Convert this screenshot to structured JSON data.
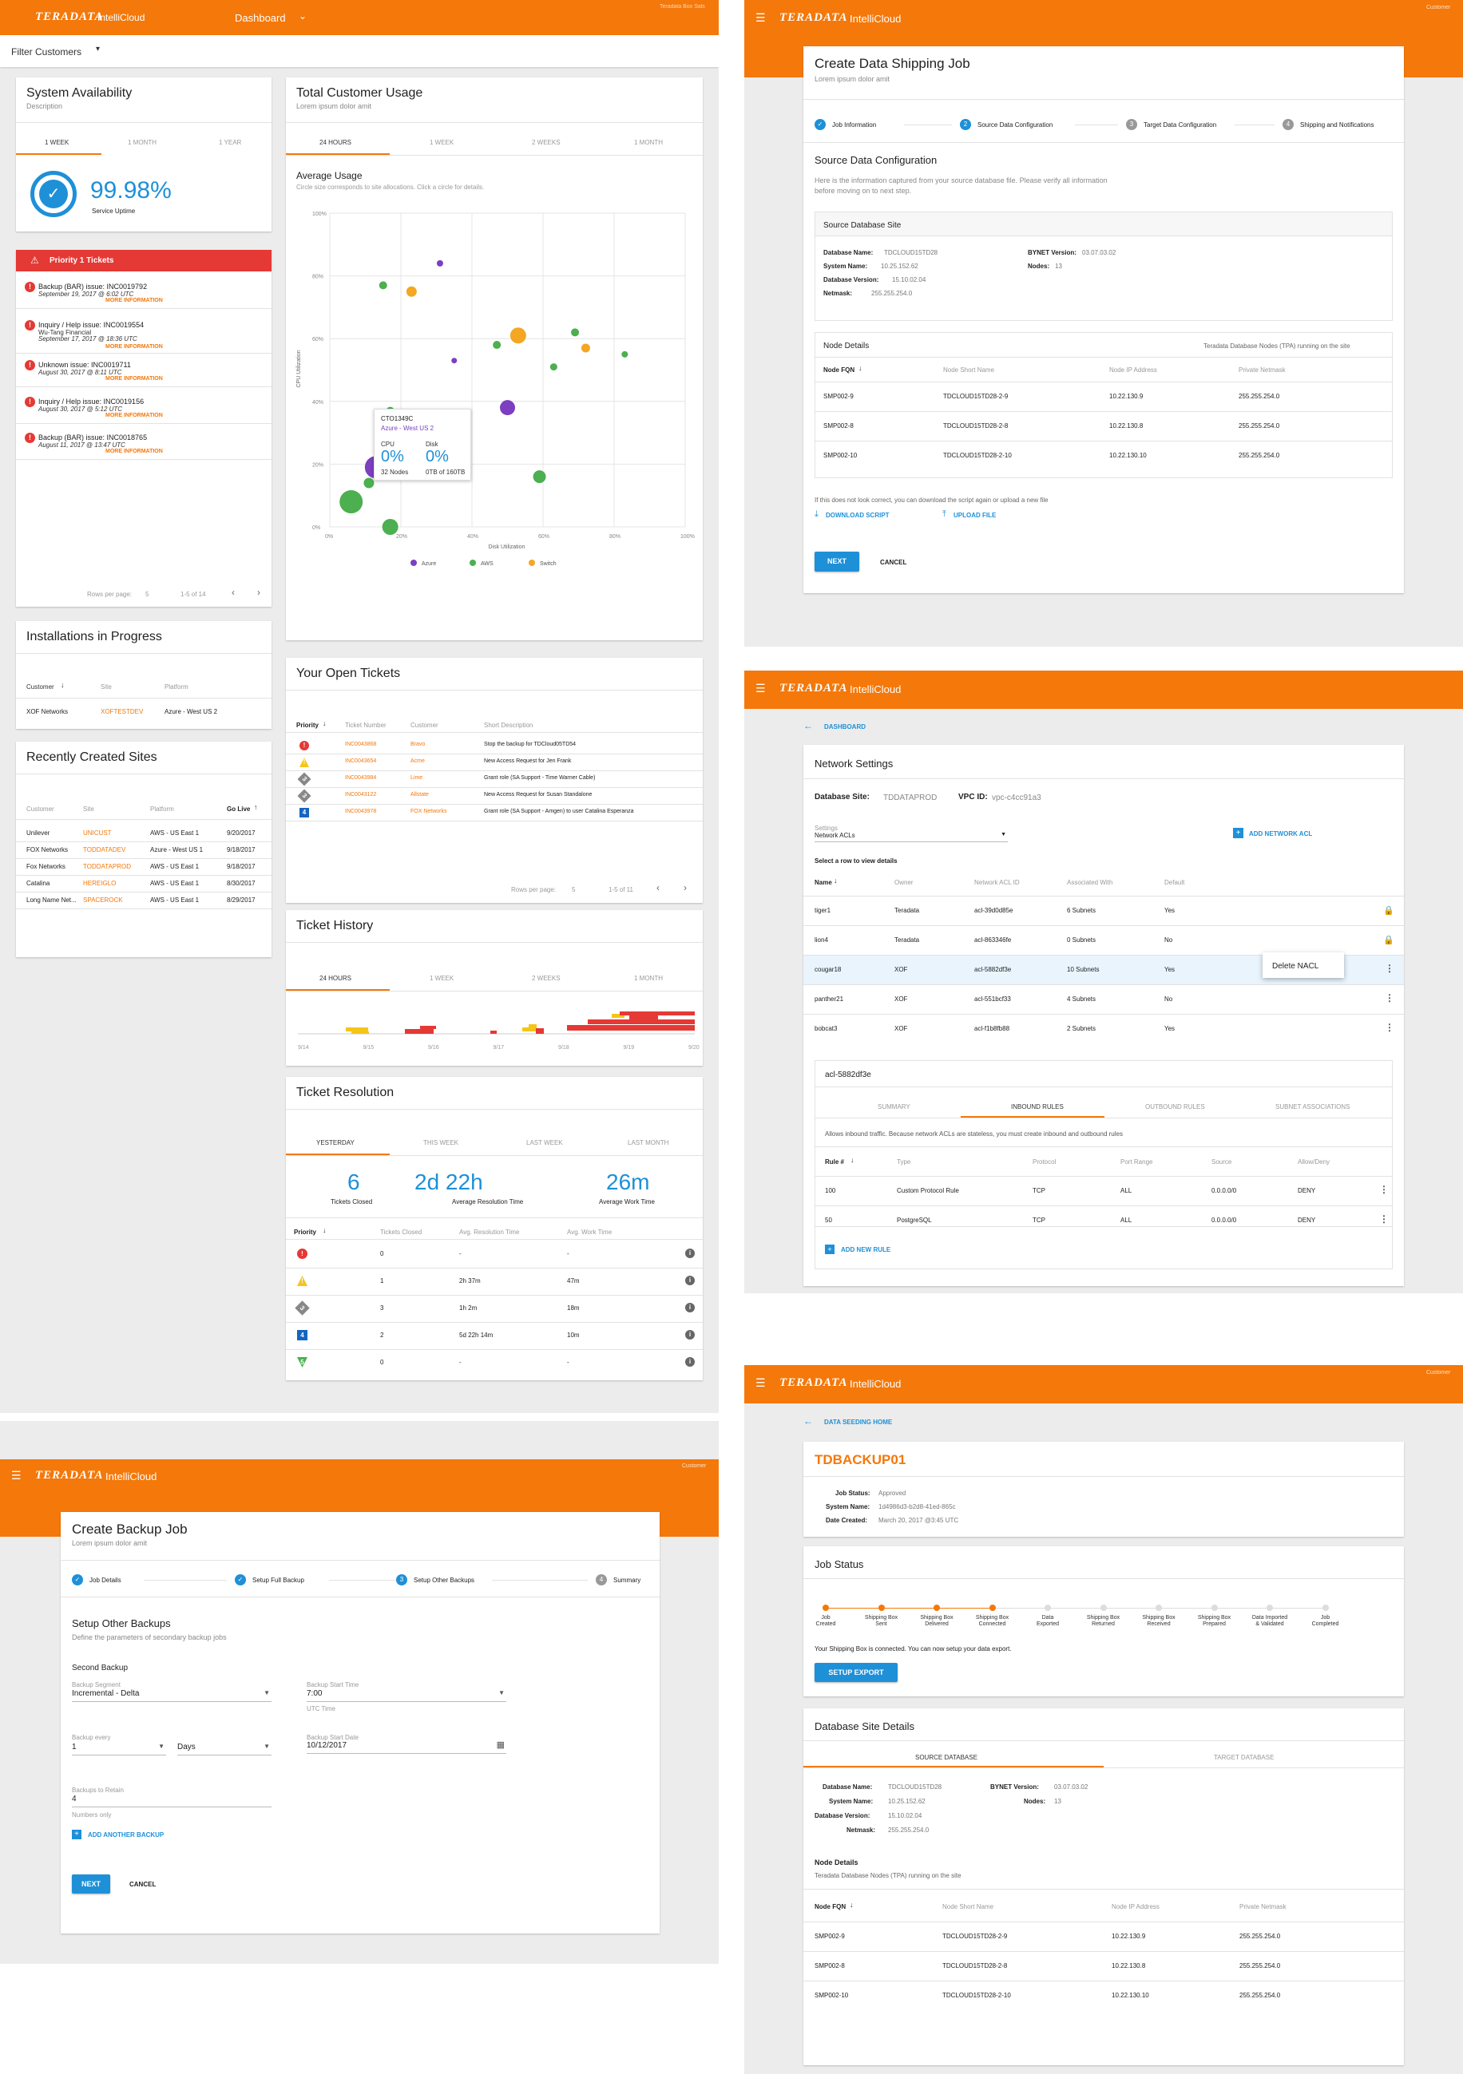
{
  "colors": {
    "brand": "#f4780a",
    "accent": "#1e90d8",
    "danger": "#e53935",
    "azure": "#7b3fbf",
    "aws": "#4caf50",
    "switch": "#f5a623"
  },
  "brand": {
    "logo": "TERADATA",
    "app": "IntelliCloud",
    "env": "Teradata Box Sals",
    "role": "Customer"
  },
  "dashboard": {
    "nav_title": "Dashboard",
    "filter": "Filter Customers",
    "availability": {
      "title": "System Availability",
      "desc": "Description",
      "tabs": [
        "1 WEEK",
        "1 MONTH",
        "1 YEAR"
      ],
      "value": "99.98%",
      "label": "Service Uptime"
    },
    "usage": {
      "title": "Total Customer Usage",
      "desc": "Lorem ipsum dolor amit",
      "tabs": [
        "24 HOURS",
        "1 WEEK",
        "2 WEEKS",
        "1 MONTH"
      ],
      "chart_title": "Average Usage",
      "chart_note": "Circle size corresponds to site allocations. Click a circle for details."
    },
    "tooltip": {
      "id": "CTO1349C",
      "region": "Azure - West US 2",
      "cpu_label": "CPU",
      "cpu": "0%",
      "cpu_sub": "32 Nodes",
      "disk_label": "Disk",
      "disk": "0%",
      "disk_sub": "0TB of 160TB"
    },
    "priority": {
      "title": "Priority 1 Tickets",
      "more": "MORE INFORMATION",
      "rows_label": "Rows per page:",
      "rows": "5",
      "range": "1-5 of 14",
      "items": [
        {
          "title": "Backup (BAR) issue: INC0019792",
          "sub": "",
          "date": "September 19, 2017 @ 6:02 UTC"
        },
        {
          "title": "Inquiry / Help issue: INC0019554",
          "sub": "Wu-Tang Financial",
          "date": "September 17, 2017 @ 18:36 UTC"
        },
        {
          "title": "Unknown issue: INC0019711",
          "sub": "",
          "date": "August 30, 2017 @ 8:11 UTC"
        },
        {
          "title": "Inquiry / Help issue: INC0019156",
          "sub": "",
          "date": "August 30, 2017 @ 5:12 UTC"
        },
        {
          "title": "Backup (BAR) issue: INC0018765",
          "sub": "",
          "date": "August 11, 2017 @ 13:47 UTC"
        }
      ]
    },
    "installs": {
      "title": "Installations in Progress",
      "headers": [
        "Customer",
        "Site",
        "Platform"
      ],
      "rows": [
        [
          "XOF Networks",
          "XOFTESTDEV",
          "Azure - West US 2"
        ]
      ]
    },
    "recent": {
      "title": "Recently Created Sites",
      "headers": [
        "Customer",
        "Site",
        "Platform",
        "Go Live"
      ],
      "rows": [
        [
          "Unilever",
          "UNICUST",
          "AWS - US East 1",
          "9/20/2017"
        ],
        [
          "FOX Networks",
          "TODDATADEV",
          "Azure - West US 1",
          "9/18/2017"
        ],
        [
          "Fox Networks",
          "TODDATAPROD",
          "AWS - US East 1",
          "9/18/2017"
        ],
        [
          "Catalina",
          "HEREIGLO",
          "AWS - US East 1",
          "8/30/2017"
        ],
        [
          "Long Name Net...",
          "SPACEROCK",
          "AWS - US East 1",
          "8/29/2017"
        ]
      ]
    },
    "open": {
      "title": "Your Open Tickets",
      "headers": [
        "Priority",
        "Ticket Number",
        "Customer",
        "Short Description"
      ],
      "rows_label": "Rows per page:",
      "rows": "5",
      "range": "1-5 of 11",
      "rows_data": [
        [
          "1",
          "INC0043868",
          "Bravo",
          "Stop the backup for TDCloud05TD54"
        ],
        [
          "2",
          "INC0043654",
          "Acme",
          "New Access Request for Jen Frank"
        ],
        [
          "3",
          "INC0043984",
          "Lime",
          "Grant role (SA Support - Time Warner Cable)"
        ],
        [
          "3",
          "INC0043122",
          "Allstate",
          "New Access Request for Susan Standalone"
        ],
        [
          "4",
          "INC0043978",
          "FOX Networks",
          "Grant role (SA Support - Amgen) to user Catalina Esperanza"
        ]
      ]
    },
    "history": {
      "title": "Ticket History",
      "tabs": [
        "24 HOURS",
        "1 WEEK",
        "2 WEEKS",
        "1 MONTH"
      ],
      "xlabels": [
        "9/14",
        "9/15",
        "9/16",
        "9/17",
        "9/18",
        "9/19",
        "9/20"
      ]
    },
    "resolution": {
      "title": "Ticket Resolution",
      "tabs": [
        "YESTERDAY",
        "THIS WEEK",
        "LAST WEEK",
        "LAST MONTH"
      ],
      "kpis": [
        {
          "v": "6",
          "l": "Tickets Closed"
        },
        {
          "v": "2d 22h",
          "l": "Average Resolution Time"
        },
        {
          "v": "26m",
          "l": "Average Work Time"
        }
      ],
      "headers": [
        "Priority",
        "Tickets Closed",
        "Avg. Resolution Time",
        "Avg. Work Time"
      ],
      "rows": [
        [
          "1",
          "0",
          "-",
          "-"
        ],
        [
          "2",
          "1",
          "2h 37m",
          "47m"
        ],
        [
          "3",
          "3",
          "1h 2m",
          "18m"
        ],
        [
          "4",
          "2",
          "5d 22h 14m",
          "10m"
        ],
        [
          "5",
          "0",
          "-",
          "-"
        ]
      ]
    }
  },
  "chart_data": {
    "type": "scatter",
    "title": "Average Usage",
    "xlabel": "Disk Utilization",
    "ylabel": "CPU Utilization",
    "xlim": [
      0,
      100
    ],
    "ylim": [
      0,
      100
    ],
    "xticks": [
      "0%",
      "20%",
      "40%",
      "60%",
      "80%",
      "100%"
    ],
    "yticks": [
      "0%",
      "20%",
      "40%",
      "60%",
      "80%",
      "100%"
    ],
    "legend": "bottom",
    "series": [
      {
        "name": "Azure",
        "color": "#7b3fbf",
        "points": [
          [
            31,
            84,
            4
          ],
          [
            50,
            38,
            15
          ],
          [
            13,
            19,
            24
          ],
          [
            35,
            53,
            3
          ]
        ]
      },
      {
        "name": "AWS",
        "color": "#4caf50",
        "points": [
          [
            15,
            77,
            6
          ],
          [
            47,
            58,
            6
          ],
          [
            69,
            62,
            6
          ],
          [
            63,
            51,
            5
          ],
          [
            83,
            55,
            4
          ],
          [
            6,
            8,
            25
          ],
          [
            17,
            37,
            6
          ],
          [
            19,
            27,
            6
          ],
          [
            33,
            20,
            15
          ],
          [
            59,
            16,
            12
          ],
          [
            11,
            14,
            9
          ],
          [
            17,
            0,
            16
          ]
        ]
      },
      {
        "name": "Switch",
        "color": "#f5a623",
        "points": [
          [
            23,
            75,
            9
          ],
          [
            53,
            61,
            16
          ],
          [
            72,
            57,
            7
          ]
        ]
      }
    ]
  },
  "backup": {
    "title": "Create Backup Job",
    "desc": "Lorem ipsum dolor amit",
    "steps": [
      "Job Details",
      "Setup Full Backup",
      "Setup Other Backups",
      "Summary"
    ],
    "section": "Setup Other Backups",
    "section_desc": "Define the parameters of secondary backup jobs",
    "sub": "Second Backup",
    "seg_label": "Backup Segment",
    "seg": "Incremental - Delta",
    "start_label": "Backup Start Time",
    "start": "7:00",
    "tz": "UTC Time",
    "every_label": "Backup every",
    "every": "1",
    "unit": "Days",
    "date_label": "Backup Start Date",
    "date": "10/12/2017",
    "retain_label": "Backups to Retain",
    "retain": "4",
    "retain_hint": "Numbers only",
    "add": "ADD ANOTHER BACKUP",
    "next": "NEXT",
    "cancel": "CANCEL"
  },
  "shipping": {
    "title": "Create Data Shipping Job",
    "desc": "Lorem ipsum dolor amit",
    "steps": [
      "Job Information",
      "Source Data Configuration",
      "Target Data Configuration",
      "Shipping and Notifications"
    ],
    "section": "Source Data Configuration",
    "section_desc1": "Here is the information captured from your source database file. Please verify all information",
    "section_desc2": "before moving on to next step.",
    "site_title": "Source Database Site",
    "fields": [
      [
        "Database Name:",
        "TDCLOUD15TD28"
      ],
      [
        "System Name:",
        "10.25.152.62"
      ],
      [
        "Database Version:",
        "15.10.02.04"
      ],
      [
        "Netmask:",
        "255.255.254.0"
      ]
    ],
    "fields2": [
      [
        "BYNET Version:",
        "03.07.03.02"
      ],
      [
        "Nodes:",
        "13"
      ]
    ],
    "nodes_title": "Node Details",
    "nodes_note": "Teradata Database Nodes (TPA) running on the site",
    "headers": [
      "Node FQN",
      "Node Short Name",
      "Node IP Address",
      "Private Netmask"
    ],
    "rows": [
      [
        "SMP002-9",
        "TDCLOUD15TD28-2-9",
        "10.22.130.9",
        "255.255.254.0"
      ],
      [
        "SMP002-8",
        "TDCLOUD15TD28-2-8",
        "10.22.130.8",
        "255.255.254.0"
      ],
      [
        "SMP002-10",
        "TDCLOUD15TD28-2-10",
        "10.22.130.10",
        "255.255.254.0"
      ]
    ],
    "hint": "If this does not look correct, you can download the script again or upload a new file",
    "download": "DOWNLOAD SCRIPT",
    "upload": "UPLOAD FILE",
    "next": "NEXT",
    "cancel": "CANCEL"
  },
  "network": {
    "back": "DASHBOARD",
    "title": "Network Settings",
    "db_label": "Database Site:",
    "db": "TDDATAPROD",
    "vpc_label": "VPC ID:",
    "vpc": "vpc-c4cc91a3",
    "settings_label": "Settings",
    "settings": "Network ACLs",
    "add": "ADD NETWORK ACL",
    "select": "Select a row to view details",
    "headers": [
      "Name",
      "Owner",
      "Network ACL ID",
      "Associated With",
      "Default"
    ],
    "rows": [
      [
        "tiger1",
        "Teradata",
        "acl-39d0d85e",
        "6 Subnets",
        "Yes"
      ],
      [
        "lion4",
        "Teradata",
        "acl-863346fe",
        "0 Subnets",
        "No"
      ],
      [
        "cougar18",
        "XOF",
        "acl-5882df3e",
        "10 Subnets",
        "Yes"
      ],
      [
        "panther21",
        "XOF",
        "acl-551bcf33",
        "4 Subnets",
        "No"
      ],
      [
        "bobcat3",
        "XOF",
        "acl-f1b8fb88",
        "2 Subnets",
        "Yes"
      ]
    ],
    "menu": "Delete NACL",
    "detail": "acl-5882df3e",
    "tabs": [
      "SUMMARY",
      "INBOUND RULES",
      "OUTBOUND RULES",
      "SUBNET ASSOCIATIONS"
    ],
    "rules_note": "Allows inbound traffic. Because network ACLs are stateless, you must create inbound and outbound rules",
    "rule_headers": [
      "Rule #",
      "Type",
      "Protocol",
      "Port Range",
      "Source",
      "Allow/Deny"
    ],
    "rules": [
      [
        "100",
        "Custom Protocol Rule",
        "TCP",
        "ALL",
        "0.0.0.0/0",
        "DENY"
      ],
      [
        "50",
        "PostgreSQL",
        "TCP",
        "ALL",
        "0.0.0.0/0",
        "DENY"
      ]
    ],
    "add_rule": "ADD NEW RULE"
  },
  "seeding": {
    "back": "DATA SEEDING HOME",
    "title": "TDBACKUP01",
    "fields": [
      [
        "Job Status:",
        "Approved"
      ],
      [
        "System Name:",
        "1d4986d3-b2d8-41ed-865c"
      ],
      [
        "Date Created:",
        "March 20, 2017 @3:45 UTC"
      ]
    ],
    "status_title": "Job Status",
    "steps": [
      "Job\nCreated",
      "Shipping Box\nSent",
      "Shipping Box\nDelivered",
      "Shipping Box\nConnected",
      "Data\nExported",
      "Shipping Box\nReturned",
      "Shipping Box\nReceived",
      "Shipping Box\nPrepared",
      "Data Imported\n& Validated",
      "Job\nCompleted"
    ],
    "done": 4,
    "msg": "Your Shipping Box is connected. You can now setup your data export.",
    "btn": "SETUP EXPORT",
    "site_title": "Database Site Details",
    "tabs": [
      "SOURCE DATABASE",
      "TARGET DATABASE"
    ],
    "fields2": [
      [
        "Database Name:",
        "TDCLOUD15TD28"
      ],
      [
        "System Name:",
        "10.25.152.62"
      ],
      [
        "Database Version:",
        "15.10.02.04"
      ],
      [
        "Netmask:",
        "255.255.254.0"
      ]
    ],
    "fields3": [
      [
        "BYNET Version:",
        "03.07.03.02"
      ],
      [
        "Nodes:",
        "13"
      ]
    ],
    "nodes_title": "Node Details",
    "nodes_note": "Teradata Database Nodes (TPA) running on the site",
    "headers": [
      "Node FQN",
      "Node Short Name",
      "Node IP Address",
      "Private Netmask"
    ],
    "rows": [
      [
        "SMP002-9",
        "TDCLOUD15TD28-2-9",
        "10.22.130.9",
        "255.255.254.0"
      ],
      [
        "SMP002-8",
        "TDCLOUD15TD28-2-8",
        "10.22.130.8",
        "255.255.254.0"
      ],
      [
        "SMP002-10",
        "TDCLOUD15TD28-2-10",
        "10.22.130.10",
        "255.255.254.0"
      ]
    ]
  }
}
